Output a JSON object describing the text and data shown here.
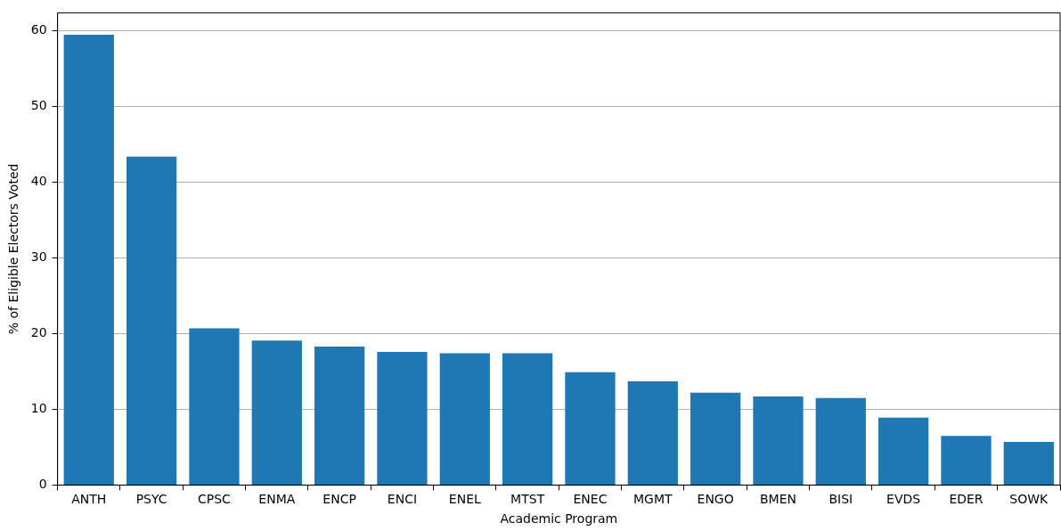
{
  "chart_data": {
    "type": "bar",
    "xlabel": "Academic Program",
    "ylabel": "% of Eligible Electors Voted",
    "categories": [
      "ANTH",
      "PSYC",
      "CPSC",
      "ENMA",
      "ENCP",
      "ENCI",
      "ENEL",
      "MTST",
      "ENEC",
      "MGMT",
      "ENGO",
      "BMEN",
      "BISI",
      "EVDS",
      "EDER",
      "SOWK"
    ],
    "values": [
      59.5,
      43.4,
      20.7,
      19.1,
      18.3,
      17.6,
      17.4,
      17.4,
      14.9,
      13.7,
      12.2,
      11.7,
      11.5,
      8.9,
      6.5,
      5.7
    ],
    "color": "#1f77b4",
    "ylim": [
      0,
      62.4
    ],
    "yticks": [
      0,
      10,
      20,
      30,
      40,
      50,
      60
    ],
    "grid": "y"
  }
}
